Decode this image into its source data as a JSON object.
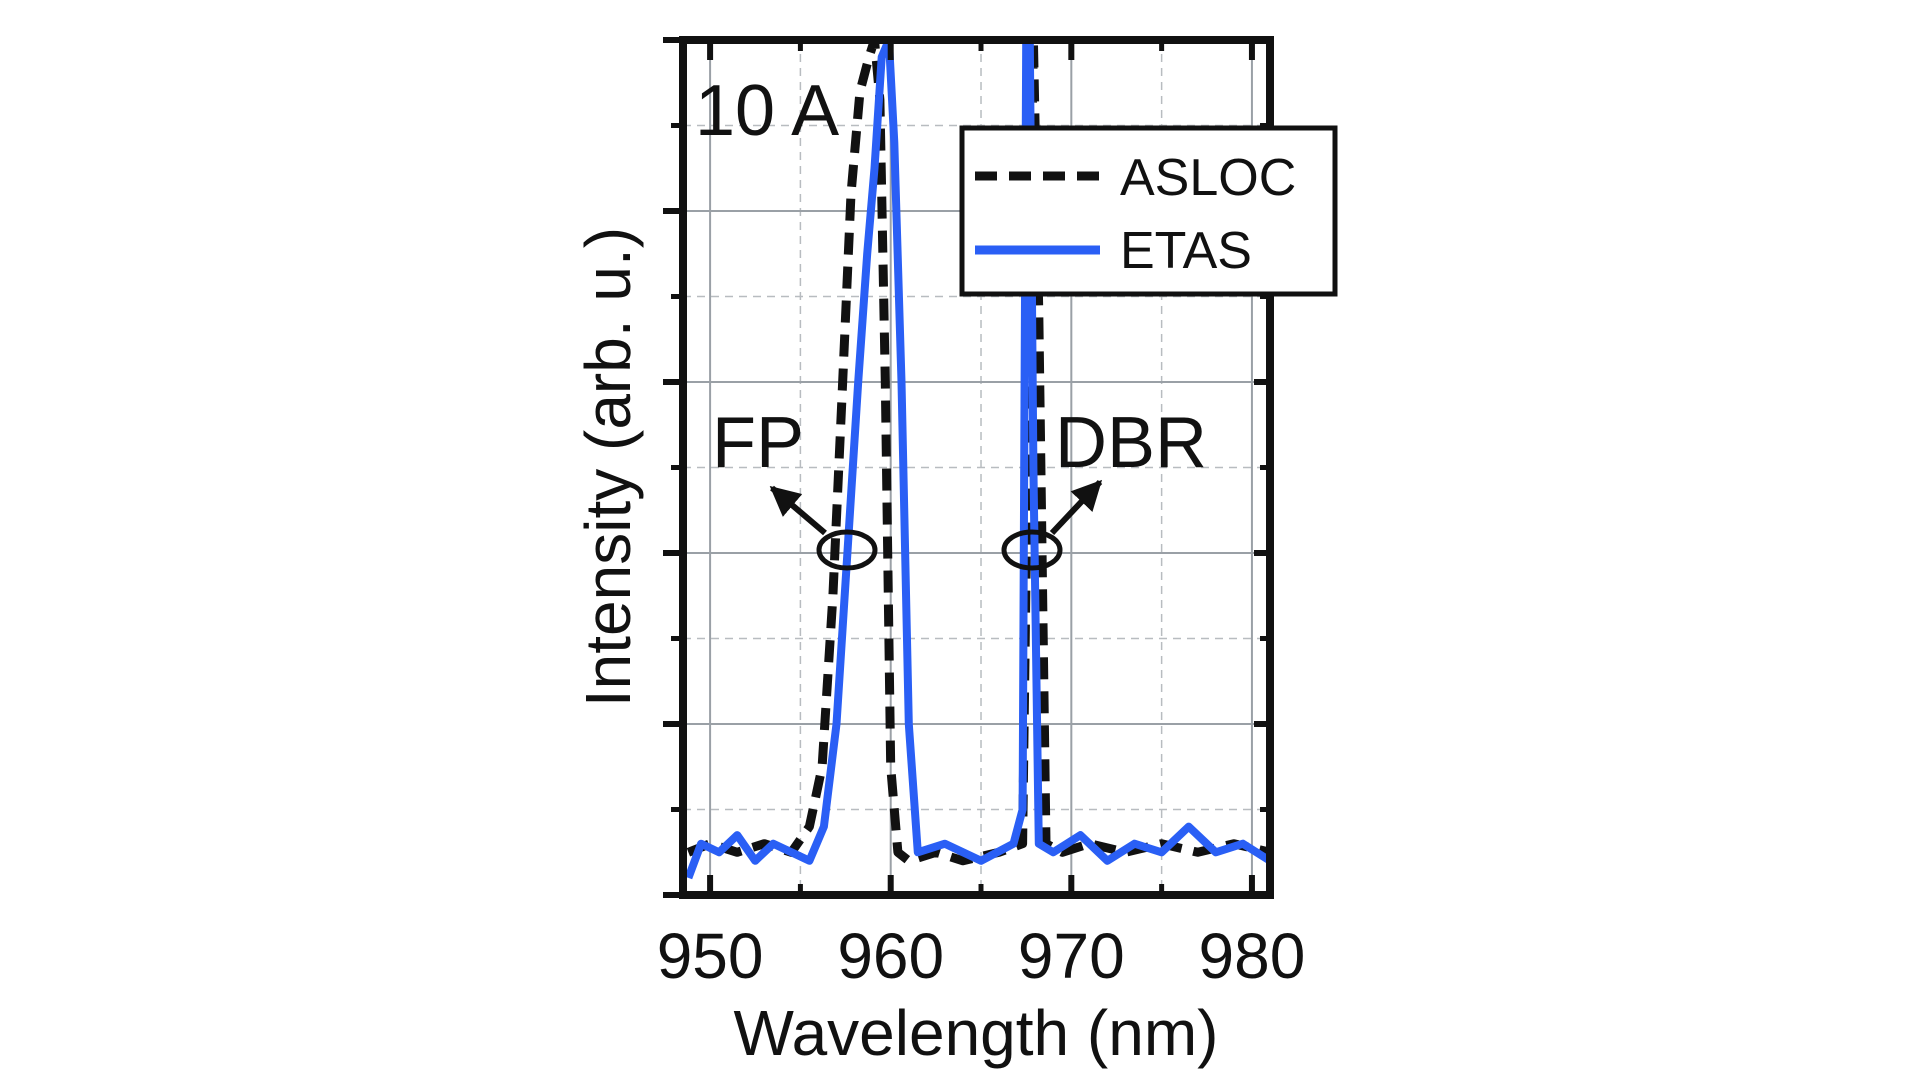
{
  "chart_data": {
    "type": "line",
    "title": "",
    "xlabel": "Wavelength (nm)",
    "ylabel": "Intensity (arb. u.)",
    "xlim": [
      948.5,
      981
    ],
    "ylim": [
      0,
      1
    ],
    "xticks": [
      950,
      960,
      970,
      980
    ],
    "xtick_labels": [
      "950",
      "960",
      "970",
      "980"
    ],
    "yticks_count": 5,
    "grid": true,
    "legend_position": "top-right",
    "annotations": {
      "current": "10 A",
      "fp": "FP",
      "dbr": "DBR"
    },
    "series": [
      {
        "name": "ASLOC",
        "style": "dashed",
        "color": "#111111",
        "x": [
          948.8,
          950,
          951.5,
          953,
          954.5,
          955.5,
          956.2,
          956.8,
          957.3,
          957.8,
          958.3,
          958.8,
          959.1,
          959.4,
          959.7,
          960.0,
          960.4,
          961,
          962.5,
          964,
          966,
          967.3,
          967.6,
          967.9,
          968.2,
          968.6,
          969.5,
          971,
          973,
          975,
          977,
          979,
          981
        ],
        "y": [
          0.05,
          0.06,
          0.05,
          0.06,
          0.05,
          0.08,
          0.15,
          0.35,
          0.58,
          0.82,
          0.94,
          0.98,
          1.0,
          0.93,
          0.6,
          0.15,
          0.05,
          0.04,
          0.05,
          0.04,
          0.05,
          0.06,
          0.55,
          1.0,
          0.68,
          0.06,
          0.05,
          0.06,
          0.05,
          0.06,
          0.05,
          0.06,
          0.05
        ]
      },
      {
        "name": "ETAS",
        "style": "solid",
        "color": "#2a5ff5",
        "x": [
          948.8,
          949.5,
          950.5,
          951.5,
          952.5,
          953.5,
          954.5,
          955.5,
          956.3,
          957.0,
          957.6,
          958.2,
          958.7,
          959.1,
          959.5,
          959.9,
          960.2,
          960.6,
          961.0,
          961.5,
          963,
          965,
          966.8,
          967.3,
          967.5,
          967.7,
          967.9,
          968.2,
          969,
          970.5,
          972,
          973.5,
          975,
          976.5,
          978,
          979.5,
          981
        ],
        "y": [
          0.02,
          0.06,
          0.05,
          0.07,
          0.04,
          0.06,
          0.05,
          0.04,
          0.08,
          0.2,
          0.4,
          0.6,
          0.75,
          0.85,
          0.98,
          1.0,
          0.88,
          0.6,
          0.2,
          0.05,
          0.06,
          0.04,
          0.06,
          0.1,
          1.0,
          1.0,
          0.5,
          0.06,
          0.05,
          0.07,
          0.04,
          0.06,
          0.05,
          0.08,
          0.05,
          0.06,
          0.04
        ]
      }
    ]
  }
}
